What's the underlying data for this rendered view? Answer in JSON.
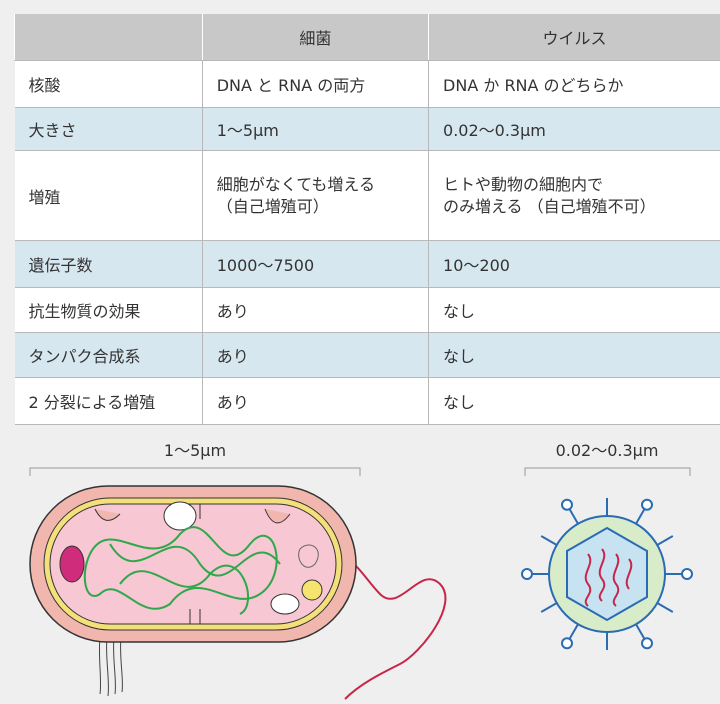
{
  "table": {
    "header": [
      "細菌",
      "ウイルス"
    ],
    "rows": [
      [
        "核酸",
        "DNA と RNA の両方",
        "DNA か RNA のどちらか"
      ],
      [
        "大きさ",
        "1〜5μm",
        "0.02〜0.3μm"
      ],
      [
        "増殖",
        [
          "細胞がなくても増える",
          "（自己増殖可）"
        ],
        [
          "ヒトや動物の細胞内で",
          "のみ増える （自己増殖不可）"
        ]
      ],
      [
        "遺伝子数",
        "1000〜7500",
        "10〜200"
      ],
      [
        "抗生物質の効果",
        "あり",
        "なし"
      ],
      [
        "タンパク合成系",
        "あり",
        "なし"
      ],
      [
        "2 分裂による増殖",
        "あり",
        "なし"
      ]
    ]
  },
  "diagram": {
    "bacteria_scale": "1〜5μm",
    "virus_scale": "0.02〜0.3μm"
  }
}
